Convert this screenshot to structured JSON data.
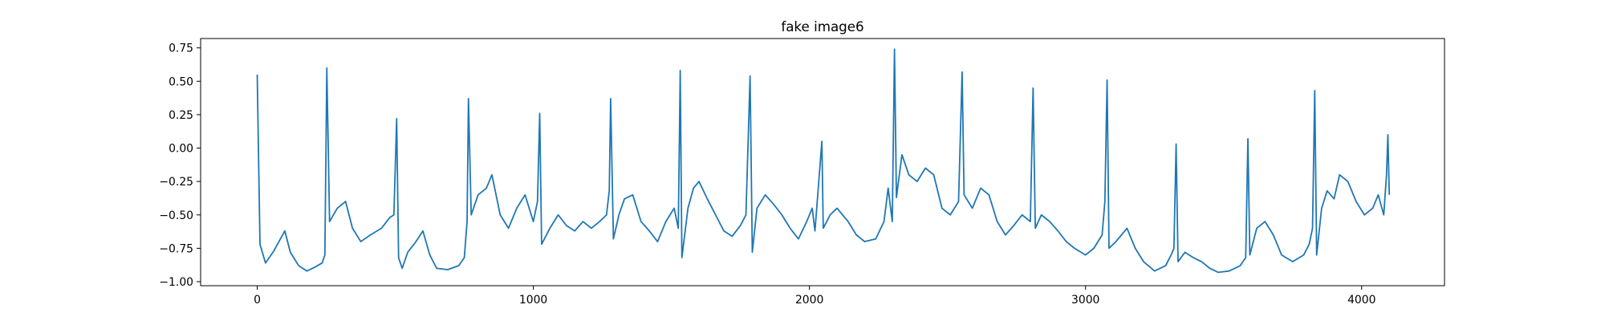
{
  "chart_data": {
    "type": "line",
    "title": "fake image6",
    "xlabel": "",
    "ylabel": "",
    "xlim": [
      -205,
      4300
    ],
    "ylim": [
      -1.03,
      0.82
    ],
    "x_ticks": [
      0,
      1000,
      2000,
      3000,
      4000
    ],
    "x_tick_labels": [
      "0",
      "1000",
      "2000",
      "3000",
      "4000"
    ],
    "y_ticks": [
      0.75,
      0.5,
      0.25,
      0.0,
      -0.25,
      -0.5,
      -0.75,
      -1.0
    ],
    "y_tick_labels": [
      "0.75",
      "0.50",
      "0.25",
      "0.00",
      "−0.25",
      "−0.50",
      "−0.75",
      "−1.00"
    ],
    "grid": false,
    "line_color": "#1f77b4",
    "series": [
      {
        "name": "",
        "points": [
          [
            0,
            0.55
          ],
          [
            10,
            -0.72
          ],
          [
            30,
            -0.86
          ],
          [
            60,
            -0.77
          ],
          [
            100,
            -0.62
          ],
          [
            120,
            -0.78
          ],
          [
            150,
            -0.88
          ],
          [
            180,
            -0.92
          ],
          [
            210,
            -0.89
          ],
          [
            235,
            -0.86
          ],
          [
            245,
            -0.8
          ],
          [
            252,
            0.6
          ],
          [
            262,
            -0.55
          ],
          [
            290,
            -0.45
          ],
          [
            320,
            -0.4
          ],
          [
            345,
            -0.6
          ],
          [
            375,
            -0.7
          ],
          [
            410,
            -0.65
          ],
          [
            450,
            -0.6
          ],
          [
            480,
            -0.52
          ],
          [
            495,
            -0.5
          ],
          [
            505,
            0.22
          ],
          [
            512,
            -0.82
          ],
          [
            525,
            -0.9
          ],
          [
            545,
            -0.78
          ],
          [
            575,
            -0.7
          ],
          [
            600,
            -0.62
          ],
          [
            625,
            -0.8
          ],
          [
            650,
            -0.9
          ],
          [
            690,
            -0.91
          ],
          [
            730,
            -0.88
          ],
          [
            750,
            -0.82
          ],
          [
            760,
            -0.55
          ],
          [
            765,
            0.37
          ],
          [
            775,
            -0.5
          ],
          [
            800,
            -0.35
          ],
          [
            830,
            -0.3
          ],
          [
            850,
            -0.2
          ],
          [
            880,
            -0.5
          ],
          [
            910,
            -0.6
          ],
          [
            940,
            -0.45
          ],
          [
            970,
            -0.35
          ],
          [
            1000,
            -0.55
          ],
          [
            1015,
            -0.4
          ],
          [
            1023,
            0.26
          ],
          [
            1030,
            -0.72
          ],
          [
            1060,
            -0.6
          ],
          [
            1090,
            -0.5
          ],
          [
            1120,
            -0.58
          ],
          [
            1150,
            -0.62
          ],
          [
            1180,
            -0.55
          ],
          [
            1210,
            -0.6
          ],
          [
            1240,
            -0.55
          ],
          [
            1265,
            -0.5
          ],
          [
            1275,
            -0.32
          ],
          [
            1280,
            0.37
          ],
          [
            1290,
            -0.68
          ],
          [
            1310,
            -0.5
          ],
          [
            1330,
            -0.38
          ],
          [
            1360,
            -0.35
          ],
          [
            1390,
            -0.55
          ],
          [
            1420,
            -0.62
          ],
          [
            1450,
            -0.7
          ],
          [
            1480,
            -0.55
          ],
          [
            1510,
            -0.45
          ],
          [
            1525,
            -0.6
          ],
          [
            1532,
            0.58
          ],
          [
            1538,
            -0.82
          ],
          [
            1560,
            -0.45
          ],
          [
            1580,
            -0.3
          ],
          [
            1600,
            -0.25
          ],
          [
            1630,
            -0.38
          ],
          [
            1660,
            -0.5
          ],
          [
            1690,
            -0.62
          ],
          [
            1720,
            -0.66
          ],
          [
            1750,
            -0.58
          ],
          [
            1770,
            -0.5
          ],
          [
            1785,
            0.54
          ],
          [
            1793,
            -0.78
          ],
          [
            1810,
            -0.45
          ],
          [
            1840,
            -0.35
          ],
          [
            1870,
            -0.42
          ],
          [
            1900,
            -0.5
          ],
          [
            1930,
            -0.6
          ],
          [
            1960,
            -0.68
          ],
          [
            1990,
            -0.55
          ],
          [
            2010,
            -0.45
          ],
          [
            2020,
            -0.62
          ],
          [
            2045,
            0.05
          ],
          [
            2050,
            -0.6
          ],
          [
            2075,
            -0.5
          ],
          [
            2100,
            -0.45
          ],
          [
            2140,
            -0.55
          ],
          [
            2170,
            -0.65
          ],
          [
            2200,
            -0.7
          ],
          [
            2240,
            -0.68
          ],
          [
            2270,
            -0.55
          ],
          [
            2285,
            -0.3
          ],
          [
            2300,
            -0.55
          ],
          [
            2308,
            0.74
          ],
          [
            2315,
            -0.37
          ],
          [
            2335,
            -0.05
          ],
          [
            2360,
            -0.2
          ],
          [
            2390,
            -0.25
          ],
          [
            2420,
            -0.15
          ],
          [
            2450,
            -0.2
          ],
          [
            2480,
            -0.45
          ],
          [
            2510,
            -0.5
          ],
          [
            2540,
            -0.4
          ],
          [
            2553,
            0.57
          ],
          [
            2560,
            -0.35
          ],
          [
            2590,
            -0.45
          ],
          [
            2620,
            -0.3
          ],
          [
            2650,
            -0.35
          ],
          [
            2680,
            -0.55
          ],
          [
            2710,
            -0.65
          ],
          [
            2740,
            -0.58
          ],
          [
            2770,
            -0.5
          ],
          [
            2800,
            -0.55
          ],
          [
            2810,
            0.45
          ],
          [
            2818,
            -0.6
          ],
          [
            2840,
            -0.5
          ],
          [
            2870,
            -0.55
          ],
          [
            2900,
            -0.62
          ],
          [
            2930,
            -0.7
          ],
          [
            2960,
            -0.75
          ],
          [
            3000,
            -0.8
          ],
          [
            3030,
            -0.75
          ],
          [
            3060,
            -0.65
          ],
          [
            3070,
            -0.4
          ],
          [
            3078,
            0.51
          ],
          [
            3085,
            -0.75
          ],
          [
            3110,
            -0.7
          ],
          [
            3150,
            -0.6
          ],
          [
            3180,
            -0.75
          ],
          [
            3210,
            -0.85
          ],
          [
            3250,
            -0.92
          ],
          [
            3290,
            -0.88
          ],
          [
            3310,
            -0.8
          ],
          [
            3320,
            -0.75
          ],
          [
            3328,
            0.03
          ],
          [
            3335,
            -0.85
          ],
          [
            3360,
            -0.78
          ],
          [
            3390,
            -0.82
          ],
          [
            3420,
            -0.85
          ],
          [
            3450,
            -0.9
          ],
          [
            3480,
            -0.93
          ],
          [
            3520,
            -0.92
          ],
          [
            3560,
            -0.88
          ],
          [
            3580,
            -0.82
          ],
          [
            3588,
            0.07
          ],
          [
            3595,
            -0.8
          ],
          [
            3620,
            -0.6
          ],
          [
            3650,
            -0.55
          ],
          [
            3680,
            -0.65
          ],
          [
            3710,
            -0.8
          ],
          [
            3750,
            -0.85
          ],
          [
            3790,
            -0.8
          ],
          [
            3810,
            -0.72
          ],
          [
            3822,
            -0.6
          ],
          [
            3830,
            0.43
          ],
          [
            3837,
            -0.8
          ],
          [
            3855,
            -0.45
          ],
          [
            3875,
            -0.32
          ],
          [
            3900,
            -0.38
          ],
          [
            3920,
            -0.2
          ],
          [
            3950,
            -0.25
          ],
          [
            3980,
            -0.4
          ],
          [
            4010,
            -0.5
          ],
          [
            4040,
            -0.45
          ],
          [
            4060,
            -0.35
          ],
          [
            4080,
            -0.5
          ],
          [
            4090,
            -0.2
          ],
          [
            4095,
            0.1
          ],
          [
            4100,
            -0.35
          ]
        ]
      }
    ]
  }
}
